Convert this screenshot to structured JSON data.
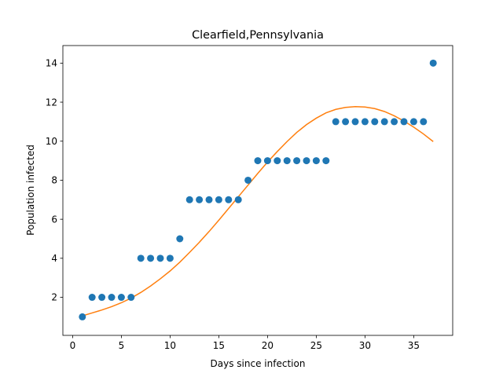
{
  "chart_data": {
    "type": "scatter",
    "title": "Clearfield,Pennsylvania",
    "xlabel": "Days since infection",
    "ylabel": "Population infected",
    "xlim": [
      -1,
      39
    ],
    "ylim": [
      0.05,
      14.9
    ],
    "xticks": [
      0,
      5,
      10,
      15,
      20,
      25,
      30,
      35
    ],
    "yticks": [
      2,
      4,
      6,
      8,
      10,
      12,
      14
    ],
    "grid": false,
    "legend": "none",
    "colors": {
      "scatter": "#1f77b4",
      "fit": "#ff7f0e"
    },
    "series": [
      {
        "kind": "scatter",
        "x": [
          1,
          2,
          3,
          4,
          5,
          6,
          7,
          8,
          9,
          10,
          11,
          12,
          13,
          14,
          15,
          16,
          17,
          18,
          19,
          20,
          21,
          22,
          23,
          24,
          25,
          26,
          27,
          28,
          29,
          30,
          31,
          32,
          33,
          34,
          35,
          36,
          37
        ],
        "y": [
          1,
          2,
          2,
          2,
          2,
          2,
          4,
          4,
          4,
          4,
          5,
          7,
          7,
          7,
          7,
          7,
          7,
          8,
          9,
          9,
          9,
          9,
          9,
          9,
          9,
          9,
          11,
          11,
          11,
          11,
          11,
          11,
          11,
          11,
          11,
          11,
          14
        ]
      },
      {
        "kind": "line",
        "x": [
          1,
          2,
          3,
          4,
          5,
          6,
          7,
          8,
          9,
          10,
          11,
          12,
          13,
          14,
          15,
          16,
          17,
          18,
          19,
          20,
          21,
          22,
          23,
          24,
          25,
          26,
          27,
          28,
          29,
          30,
          31,
          32,
          33,
          34,
          35,
          36,
          37
        ],
        "y": [
          1.05,
          1.2,
          1.35,
          1.52,
          1.72,
          1.96,
          2.25,
          2.58,
          2.95,
          3.35,
          3.8,
          4.3,
          4.82,
          5.37,
          5.95,
          6.55,
          7.15,
          7.75,
          8.35,
          8.93,
          9.47,
          9.98,
          10.45,
          10.85,
          11.18,
          11.45,
          11.63,
          11.73,
          11.77,
          11.75,
          11.67,
          11.52,
          11.3,
          11.03,
          10.72,
          10.37,
          9.98
        ]
      }
    ]
  }
}
